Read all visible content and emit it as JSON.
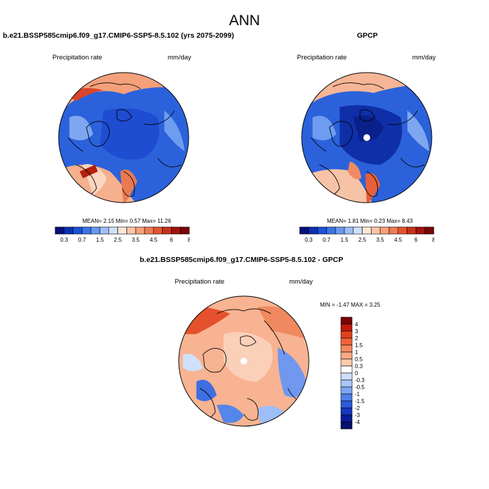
{
  "title": "ANN",
  "panels": [
    {
      "title": "b.e21.BSSP585cmip6.f09_g17.CMIP6-SSP5-8.5.102 (yrs 2075-2099)",
      "left_label": "Precipitation rate",
      "right_label": "mm/day",
      "stats": "MEAN=  2.15  Min=  0.57  Max=  11.26"
    },
    {
      "title": "GPCP",
      "left_label": "Precipitation rate",
      "right_label": "mm/day",
      "stats": "MEAN=  1.81  Min=  0.23  Max=  8.43"
    },
    {
      "title": "b.e21.BSSP585cmip6.f09_g17.CMIP6-SSP5-8.5.102 - GPCP",
      "left_label": "Precipitation rate",
      "right_label": "mm/day",
      "stats": "MIN =  -1.47 MAX =  3.25"
    }
  ],
  "colorbar_abs": {
    "colors": [
      "#08107e",
      "#0b2fb4",
      "#1c50d8",
      "#3a72e8",
      "#6a98f0",
      "#9dbef6",
      "#cfe0fb",
      "#fde6d6",
      "#fbc5a6",
      "#f7a27a",
      "#ef7b53",
      "#e2542f",
      "#c9301a",
      "#a2130e",
      "#7a0606"
    ],
    "labels": [
      "0.3",
      "0.7",
      "1.5",
      "2.5",
      "3.5",
      "4.5",
      "6",
      "8"
    ]
  },
  "colorbar_diff": {
    "colors": [
      "#7a0606",
      "#c21a0a",
      "#e2421c",
      "#f4633a",
      "#f68860",
      "#f9aa86",
      "#fbcaaf",
      "#ffffff",
      "#cfe0fb",
      "#a8c6f7",
      "#7ea7f2",
      "#4f7fea",
      "#2d5bdc",
      "#1537c2",
      "#0a1c98",
      "#06106e"
    ],
    "labels": [
      "4",
      "3",
      "2",
      "1.5",
      "1",
      "0.5",
      "0.3",
      "0",
      "-0.3",
      "-0.5",
      "-1",
      "-1.5",
      "-2",
      "-3",
      "-4"
    ]
  }
}
